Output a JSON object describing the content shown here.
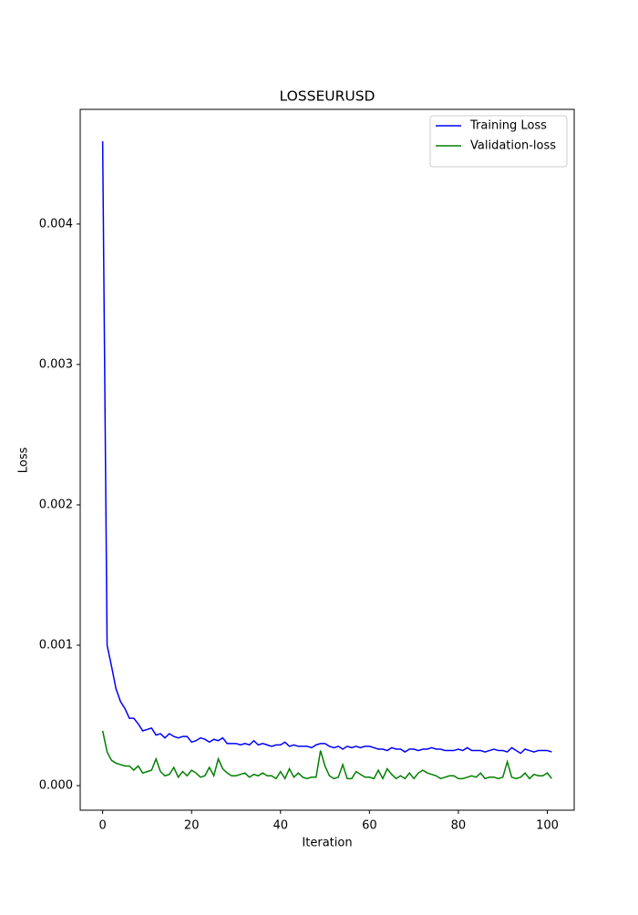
{
  "chart_data": {
    "type": "line",
    "title": "LOSSEURUSD",
    "x_label": "Iteration",
    "y_label": "Loss",
    "x": [
      0,
      1,
      2,
      3,
      4,
      5,
      6,
      7,
      8,
      9,
      10,
      11,
      12,
      13,
      14,
      15,
      16,
      17,
      18,
      19,
      20,
      21,
      22,
      23,
      24,
      25,
      26,
      27,
      28,
      29,
      30,
      31,
      32,
      33,
      34,
      35,
      36,
      37,
      38,
      39,
      40,
      41,
      42,
      43,
      44,
      45,
      46,
      47,
      48,
      49,
      50,
      51,
      52,
      53,
      54,
      55,
      56,
      57,
      58,
      59,
      60,
      61,
      62,
      63,
      64,
      65,
      66,
      67,
      68,
      69,
      70,
      71,
      72,
      73,
      74,
      75,
      76,
      77,
      78,
      79,
      80,
      81,
      82,
      83,
      84,
      85,
      86,
      87,
      88,
      89,
      90,
      91,
      92,
      93,
      94,
      95,
      96,
      97,
      98,
      99,
      100,
      101
    ],
    "series": [
      {
        "name": "Training Loss",
        "color": "#0000ff",
        "values": [
          0.00459,
          0.001,
          0.00085,
          0.00069,
          0.0006,
          0.00055,
          0.00048,
          0.00048,
          0.00044,
          0.00039,
          0.0004,
          0.00041,
          0.00036,
          0.00037,
          0.00034,
          0.00037,
          0.00035,
          0.00034,
          0.00035,
          0.00035,
          0.00031,
          0.00032,
          0.00034,
          0.00033,
          0.00031,
          0.00033,
          0.00032,
          0.00034,
          0.0003,
          0.0003,
          0.0003,
          0.00029,
          0.0003,
          0.00029,
          0.00032,
          0.00029,
          0.0003,
          0.00029,
          0.00028,
          0.00029,
          0.00029,
          0.00031,
          0.00028,
          0.00029,
          0.00028,
          0.00028,
          0.00028,
          0.00027,
          0.00029,
          0.0003,
          0.0003,
          0.00028,
          0.00027,
          0.00028,
          0.00026,
          0.00028,
          0.00027,
          0.00028,
          0.00027,
          0.00028,
          0.00028,
          0.00027,
          0.00026,
          0.00026,
          0.00025,
          0.00027,
          0.00026,
          0.00026,
          0.00024,
          0.00026,
          0.00026,
          0.00025,
          0.00026,
          0.00026,
          0.00027,
          0.00026,
          0.00026,
          0.00025,
          0.00025,
          0.00025,
          0.00026,
          0.00025,
          0.00027,
          0.00025,
          0.00025,
          0.00025,
          0.00024,
          0.00025,
          0.00026,
          0.00025,
          0.00025,
          0.00024,
          0.00027,
          0.00025,
          0.00023,
          0.00026,
          0.00025,
          0.00024,
          0.00025,
          0.00025,
          0.00025,
          0.00024
        ]
      },
      {
        "name": "Validation-loss",
        "color": "#008000",
        "values": [
          0.00039,
          0.00024,
          0.00018,
          0.00016,
          0.00015,
          0.00014,
          0.00014,
          0.00011,
          0.00014,
          9e-05,
          0.0001,
          0.00011,
          0.00019,
          0.0001,
          7e-05,
          8e-05,
          0.00013,
          6e-05,
          0.0001,
          7e-05,
          0.00011,
          9e-05,
          6e-05,
          7e-05,
          0.00013,
          7e-05,
          0.00019,
          0.00012,
          9e-05,
          7e-05,
          7e-05,
          8e-05,
          9e-05,
          6e-05,
          8e-05,
          7e-05,
          9e-05,
          7e-05,
          7e-05,
          5e-05,
          0.0001,
          5e-05,
          0.00012,
          6e-05,
          9e-05,
          6e-05,
          5e-05,
          6e-05,
          6e-05,
          0.00025,
          0.00014,
          7e-05,
          5e-05,
          6e-05,
          0.00015,
          5e-05,
          5e-05,
          0.0001,
          8e-05,
          6e-05,
          6e-05,
          5e-05,
          0.00011,
          5e-05,
          0.00012,
          8e-05,
          5e-05,
          7e-05,
          5e-05,
          9e-05,
          5e-05,
          9e-05,
          0.00011,
          9e-05,
          8e-05,
          7e-05,
          5e-05,
          6e-05,
          7e-05,
          7e-05,
          5e-05,
          5e-05,
          6e-05,
          7e-05,
          6e-05,
          9e-05,
          5e-05,
          6e-05,
          6e-05,
          5e-05,
          6e-05,
          0.00017,
          6e-05,
          5e-05,
          6e-05,
          9e-05,
          5e-05,
          8e-05,
          7e-05,
          7e-05,
          9e-05,
          5e-05
        ]
      }
    ],
    "xlim": [
      -5.05,
      106.05
    ],
    "ylim": [
      -0.000175,
      0.004817
    ],
    "xticks": [
      0,
      20,
      40,
      60,
      80,
      100
    ],
    "yticks": [
      {
        "value": 0,
        "label": "0.000"
      },
      {
        "value": 0.001,
        "label": "0.001"
      },
      {
        "value": 0.002,
        "label": "0.002"
      },
      {
        "value": 0.003,
        "label": "0.003"
      },
      {
        "value": 0.004,
        "label": "0.004"
      }
    ],
    "grid": false,
    "legend": "upper right"
  }
}
